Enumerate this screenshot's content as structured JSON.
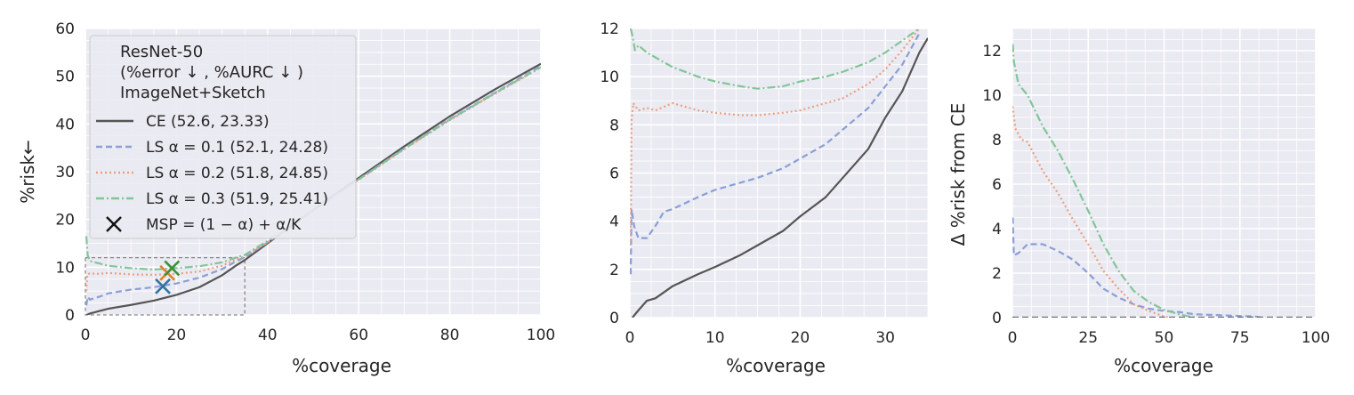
{
  "colors": {
    "ce": "#555555",
    "ls01": "#8a9fd6",
    "ls02": "#ec9f7f",
    "ls03": "#82c597",
    "msp01": "#3274a1",
    "msp02": "#e1812c",
    "msp03": "#3a923a",
    "panel_bg": "#eaeaf2",
    "grid": "#ffffff",
    "reference": "#666666"
  },
  "chart_data": [
    {
      "type": "line",
      "xlabel": "%coverage",
      "ylabel": "%risk←",
      "xlim": [
        0,
        100
      ],
      "ylim": [
        0,
        60
      ],
      "xticks": [
        "0",
        "20",
        "40",
        "60",
        "80",
        "100"
      ],
      "yticks": [
        "0",
        "10",
        "20",
        "30",
        "40",
        "50",
        "60"
      ],
      "grid": true,
      "legend": {
        "placement": "upper-left",
        "title": [
          "ResNet-50",
          "(%error ↓ , %AURC ↓ )",
          "ImageNet+Sketch"
        ],
        "entries": [
          {
            "label": "CE (52.6, 23.33)",
            "series": "ce",
            "style": "solid"
          },
          {
            "label": "LS α = 0.1 (52.1, 24.28)",
            "series": "ls01",
            "style": "dashed"
          },
          {
            "label": "LS α = 0.2 (51.8, 24.85)",
            "series": "ls02",
            "style": "dotted"
          },
          {
            "label": "LS α = 0.3 (51.9, 25.41)",
            "series": "ls03",
            "style": "dashdot"
          },
          {
            "label": "MSP = (1 − α) + α/K",
            "series": "msp",
            "style": "marker-x"
          }
        ]
      },
      "zoom_box": {
        "x": [
          0,
          35
        ],
        "y": [
          0,
          12
        ]
      },
      "series": [
        {
          "key": "ce",
          "values": [
            [
              0.3,
              0
            ],
            [
              1,
              0.3
            ],
            [
              3,
              0.8
            ],
            [
              5,
              1.3
            ],
            [
              10,
              2.1
            ],
            [
              15,
              3.0
            ],
            [
              20,
              4.2
            ],
            [
              25,
              5.8
            ],
            [
              30,
              8.3
            ],
            [
              33,
              10.3
            ],
            [
              35,
              11.5
            ],
            [
              40,
              15.0
            ],
            [
              50,
              22.0
            ],
            [
              60,
              28.7
            ],
            [
              70,
              35.3
            ],
            [
              80,
              41.6
            ],
            [
              90,
              47.3
            ],
            [
              100,
              52.6
            ]
          ]
        },
        {
          "key": "ls01",
          "values": [
            [
              0.2,
              2
            ],
            [
              0.5,
              3.8
            ],
            [
              1,
              3.2
            ],
            [
              3,
              3.8
            ],
            [
              5,
              4.5
            ],
            [
              8,
              5.0
            ],
            [
              10,
              5.3
            ],
            [
              15,
              5.8
            ],
            [
              20,
              6.6
            ],
            [
              25,
              7.8
            ],
            [
              30,
              9.6
            ],
            [
              33,
              11.2
            ],
            [
              35,
              12.1
            ],
            [
              40,
              15.2
            ],
            [
              50,
              21.9
            ],
            [
              60,
              28.4
            ],
            [
              70,
              34.9
            ],
            [
              80,
              41.0
            ],
            [
              90,
              46.6
            ],
            [
              100,
              52.1
            ]
          ]
        },
        {
          "key": "ls02",
          "values": [
            [
              0.2,
              5
            ],
            [
              0.4,
              8.5
            ],
            [
              1,
              8.7
            ],
            [
              3,
              8.6
            ],
            [
              5,
              8.8
            ],
            [
              10,
              8.5
            ],
            [
              15,
              8.4
            ],
            [
              20,
              8.6
            ],
            [
              25,
              9.1
            ],
            [
              30,
              10.3
            ],
            [
              33,
              11.6
            ],
            [
              35,
              12.3
            ],
            [
              40,
              15.2
            ],
            [
              50,
              21.8
            ],
            [
              60,
              28.3
            ],
            [
              70,
              34.7
            ],
            [
              80,
              40.8
            ],
            [
              90,
              46.4
            ],
            [
              100,
              51.8
            ]
          ]
        },
        {
          "key": "ls03",
          "values": [
            [
              0.2,
              16.5
            ],
            [
              0.5,
              12.5
            ],
            [
              1,
              11.3
            ],
            [
              3,
              10.8
            ],
            [
              5,
              10.3
            ],
            [
              10,
              9.8
            ],
            [
              15,
              9.5
            ],
            [
              20,
              9.8
            ],
            [
              25,
              10.2
            ],
            [
              30,
              11.0
            ],
            [
              33,
              12.0
            ],
            [
              35,
              12.6
            ],
            [
              40,
              15.5
            ],
            [
              50,
              22.0
            ],
            [
              60,
              28.4
            ],
            [
              70,
              34.8
            ],
            [
              80,
              40.9
            ],
            [
              90,
              46.5
            ],
            [
              100,
              51.9
            ]
          ]
        }
      ],
      "msp_points": [
        {
          "key": "msp01",
          "x": 17,
          "y": 6
        },
        {
          "key": "msp02",
          "x": 18,
          "y": 8.8
        },
        {
          "key": "msp03",
          "x": 19,
          "y": 9.8
        }
      ]
    },
    {
      "type": "line",
      "xlabel": "%coverage",
      "ylabel": "",
      "xlim": [
        0,
        35
      ],
      "ylim": [
        0,
        12
      ],
      "xticks": [
        "0",
        "10",
        "20",
        "30"
      ],
      "yticks": [
        "0",
        "2",
        "4",
        "6",
        "8",
        "10",
        "12"
      ],
      "grid": true,
      "series": [
        {
          "key": "ce",
          "values": [
            [
              0.3,
              0
            ],
            [
              1,
              0.3
            ],
            [
              2,
              0.7
            ],
            [
              3,
              0.8
            ],
            [
              5,
              1.3
            ],
            [
              8,
              1.8
            ],
            [
              10,
              2.1
            ],
            [
              13,
              2.6
            ],
            [
              15,
              3.0
            ],
            [
              18,
              3.6
            ],
            [
              20,
              4.2
            ],
            [
              23,
              5.0
            ],
            [
              25,
              5.8
            ],
            [
              28,
              7.0
            ],
            [
              30,
              8.3
            ],
            [
              32,
              9.4
            ],
            [
              34,
              11.0
            ],
            [
              35,
              11.6
            ]
          ]
        },
        {
          "key": "ls01",
          "values": [
            [
              0.1,
              1.8
            ],
            [
              0.2,
              4.5
            ],
            [
              0.5,
              3.8
            ],
            [
              1,
              3.3
            ],
            [
              2,
              3.3
            ],
            [
              3,
              3.8
            ],
            [
              4,
              4.4
            ],
            [
              5,
              4.5
            ],
            [
              8,
              5.0
            ],
            [
              10,
              5.3
            ],
            [
              13,
              5.6
            ],
            [
              15,
              5.8
            ],
            [
              18,
              6.2
            ],
            [
              20,
              6.6
            ],
            [
              23,
              7.2
            ],
            [
              25,
              7.8
            ],
            [
              28,
              8.7
            ],
            [
              30,
              9.6
            ],
            [
              32,
              10.5
            ],
            [
              34,
              11.8
            ]
          ]
        },
        {
          "key": "ls02",
          "values": [
            [
              0.1,
              3
            ],
            [
              0.2,
              8.2
            ],
            [
              0.4,
              8.9
            ],
            [
              1,
              8.6
            ],
            [
              2,
              8.7
            ],
            [
              3,
              8.6
            ],
            [
              5,
              8.9
            ],
            [
              8,
              8.6
            ],
            [
              10,
              8.5
            ],
            [
              13,
              8.4
            ],
            [
              15,
              8.4
            ],
            [
              18,
              8.5
            ],
            [
              20,
              8.6
            ],
            [
              23,
              8.9
            ],
            [
              25,
              9.1
            ],
            [
              28,
              9.7
            ],
            [
              30,
              10.3
            ],
            [
              32,
              11.1
            ],
            [
              34,
              12.0
            ]
          ]
        },
        {
          "key": "ls03",
          "values": [
            [
              0.1,
              12
            ],
            [
              0.3,
              11.7
            ],
            [
              0.6,
              11.1
            ],
            [
              1,
              11.3
            ],
            [
              2,
              11.0
            ],
            [
              3,
              10.8
            ],
            [
              5,
              10.4
            ],
            [
              8,
              10.0
            ],
            [
              10,
              9.8
            ],
            [
              13,
              9.6
            ],
            [
              15,
              9.5
            ],
            [
              18,
              9.6
            ],
            [
              20,
              9.8
            ],
            [
              23,
              10.0
            ],
            [
              25,
              10.2
            ],
            [
              28,
              10.6
            ],
            [
              30,
              11.0
            ],
            [
              32,
              11.5
            ],
            [
              34,
              12.0
            ]
          ]
        }
      ]
    },
    {
      "type": "line",
      "xlabel": "%coverage",
      "ylabel": "Δ %risk from CE",
      "xlim": [
        0,
        100
      ],
      "ylim": [
        0,
        13
      ],
      "xticks": [
        "0",
        "25",
        "50",
        "75",
        "100"
      ],
      "yticks": [
        "0",
        "2",
        "4",
        "6",
        "8",
        "10",
        "12"
      ],
      "grid": true,
      "series": [
        {
          "key": "ls01",
          "values": [
            [
              0.1,
              4.5
            ],
            [
              0.5,
              2.8
            ],
            [
              2,
              2.9
            ],
            [
              5,
              3.3
            ],
            [
              10,
              3.3
            ],
            [
              15,
              3.0
            ],
            [
              20,
              2.6
            ],
            [
              25,
              2.0
            ],
            [
              30,
              1.3
            ],
            [
              35,
              0.9
            ],
            [
              40,
              0.6
            ],
            [
              45,
              0.4
            ],
            [
              50,
              0.3
            ],
            [
              55,
              0.25
            ],
            [
              60,
              0.15
            ],
            [
              70,
              0.1
            ],
            [
              80,
              0.05
            ],
            [
              90,
              -0.2
            ],
            [
              100,
              -0.45
            ]
          ]
        },
        {
          "key": "ls02",
          "values": [
            [
              0.1,
              9.5
            ],
            [
              1,
              8.5
            ],
            [
              3,
              8.0
            ],
            [
              5,
              7.9
            ],
            [
              10,
              6.6
            ],
            [
              15,
              5.6
            ],
            [
              20,
              4.4
            ],
            [
              25,
              3.3
            ],
            [
              30,
              2.1
            ],
            [
              35,
              1.3
            ],
            [
              40,
              0.6
            ],
            [
              45,
              0.3
            ],
            [
              50,
              0.05
            ],
            [
              55,
              -0.1
            ],
            [
              60,
              -0.2
            ],
            [
              70,
              -0.4
            ],
            [
              80,
              -0.6
            ],
            [
              90,
              -0.7
            ],
            [
              100,
              -0.8
            ]
          ]
        },
        {
          "key": "ls03",
          "values": [
            [
              0.1,
              12.3
            ],
            [
              0.5,
              11.5
            ],
            [
              2,
              10.5
            ],
            [
              5,
              10.0
            ],
            [
              10,
              8.6
            ],
            [
              15,
              7.5
            ],
            [
              20,
              6.2
            ],
            [
              25,
              4.8
            ],
            [
              30,
              3.3
            ],
            [
              35,
              2.1
            ],
            [
              40,
              1.2
            ],
            [
              45,
              0.7
            ],
            [
              50,
              0.35
            ],
            [
              55,
              0.15
            ],
            [
              60,
              0.0
            ],
            [
              70,
              -0.3
            ],
            [
              80,
              -0.55
            ],
            [
              90,
              -0.75
            ],
            [
              100,
              -0.8
            ]
          ]
        },
        {
          "key": "reference",
          "values": [
            [
              0,
              0
            ],
            [
              100,
              0
            ]
          ]
        }
      ]
    }
  ]
}
